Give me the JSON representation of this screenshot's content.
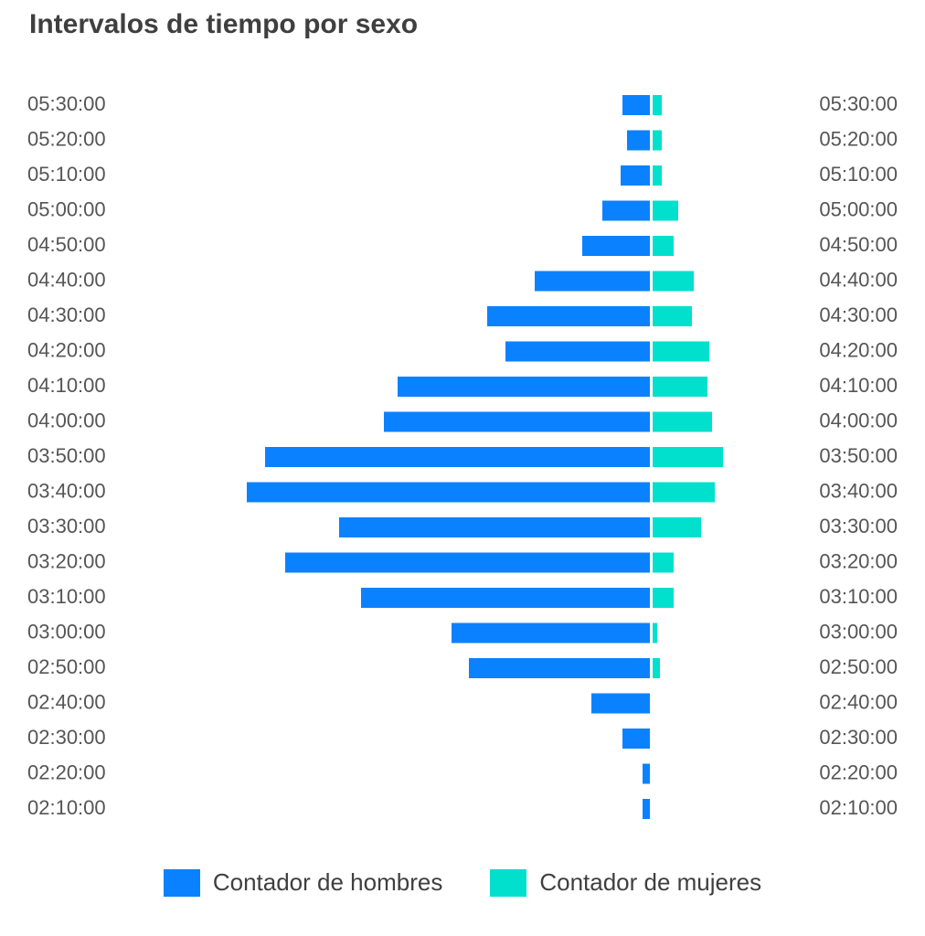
{
  "chart_data": {
    "type": "bar",
    "orientation": "horizontal-diverging",
    "title": "Intervalos de tiempo por sexo",
    "categories": [
      "05:30:00",
      "05:20:00",
      "05:10:00",
      "05:00:00",
      "04:50:00",
      "04:40:00",
      "04:30:00",
      "04:20:00",
      "04:10:00",
      "04:00:00",
      "03:50:00",
      "03:40:00",
      "03:30:00",
      "03:20:00",
      "03:10:00",
      "03:00:00",
      "02:50:00",
      "02:40:00",
      "02:30:00",
      "02:20:00",
      "02:10:00"
    ],
    "series": [
      {
        "name": "Contador de hombres",
        "color": "#0a82ff",
        "values": [
          3,
          2.5,
          3.2,
          5.2,
          7.4,
          12.6,
          17.8,
          15.8,
          27.6,
          29.1,
          42.1,
          44.1,
          34,
          39.9,
          31.6,
          21.7,
          19.8,
          6.4,
          3,
          0.8,
          0.8
        ]
      },
      {
        "name": "Contador de mujeres",
        "color": "#00e0cd",
        "values": [
          1,
          1,
          1,
          2.8,
          2.3,
          4.5,
          4.3,
          6.2,
          6,
          6.5,
          7.7,
          6.8,
          5.3,
          2.3,
          2.3,
          0.5,
          0.8,
          0,
          0,
          0,
          0
        ]
      }
    ],
    "legend_position": "bottom-center",
    "grid": false
  }
}
